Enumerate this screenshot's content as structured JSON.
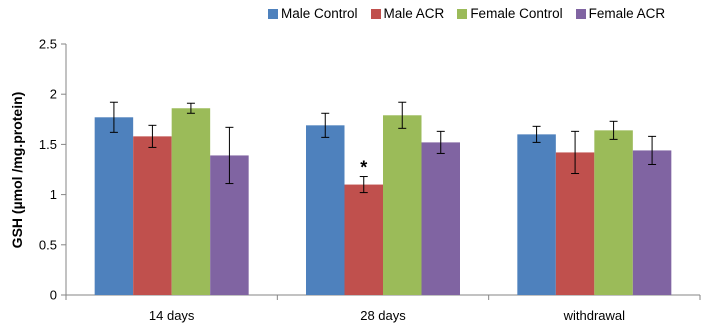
{
  "chart_data": {
    "type": "bar",
    "title": "",
    "xlabel": "",
    "ylabel": "GSH (µmol /mg.protein)",
    "ylim": [
      0,
      2.5
    ],
    "yticks": [
      "0",
      "0.5",
      "1",
      "1.5",
      "2",
      "2.5"
    ],
    "categories": [
      "14 days",
      "28 days",
      "withdrawal"
    ],
    "series": [
      {
        "name": "Male Control",
        "color": "#4e81bd",
        "values": [
          1.77,
          1.69,
          1.6
        ],
        "errors": [
          0.15,
          0.12,
          0.08
        ]
      },
      {
        "name": "Male ACR",
        "color": "#c0504d",
        "values": [
          1.58,
          1.1,
          1.42
        ],
        "errors": [
          0.11,
          0.08,
          0.21
        ]
      },
      {
        "name": "Female Control",
        "color": "#9bbb59",
        "values": [
          1.86,
          1.79,
          1.64
        ],
        "errors": [
          0.05,
          0.13,
          0.09
        ]
      },
      {
        "name": "Female ACR",
        "color": "#8064a2",
        "values": [
          1.39,
          1.52,
          1.44
        ],
        "errors": [
          0.28,
          0.11,
          0.14
        ]
      }
    ],
    "annotations": [
      {
        "text": "*",
        "category": "28 days",
        "series": "Male ACR"
      }
    ],
    "legend": "top"
  }
}
